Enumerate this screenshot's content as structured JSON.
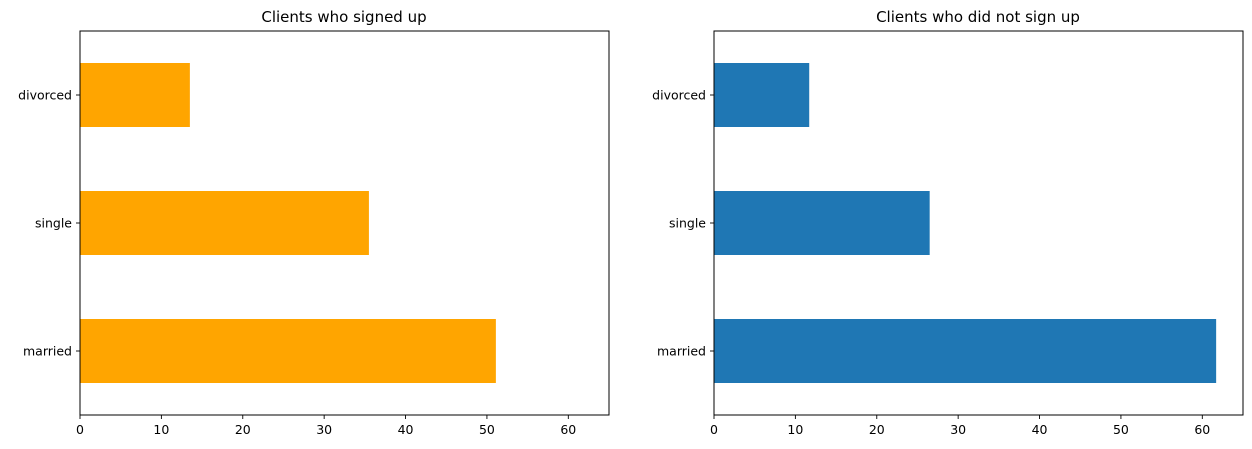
{
  "chart_data": [
    {
      "type": "bar",
      "orientation": "horizontal",
      "title": "Clients who signed up",
      "categories": [
        "married",
        "single",
        "divorced"
      ],
      "values": [
        51.1,
        35.5,
        13.5
      ],
      "xlim": [
        0,
        65
      ],
      "xticks": [
        0,
        10,
        20,
        30,
        40,
        50,
        60
      ],
      "color": "#FFA500",
      "xlabel": "",
      "ylabel": "",
      "grid": false
    },
    {
      "type": "bar",
      "orientation": "horizontal",
      "title": "Clients who did not sign up",
      "categories": [
        "married",
        "single",
        "divorced"
      ],
      "values": [
        61.7,
        26.5,
        11.7
      ],
      "xlim": [
        0,
        65
      ],
      "xticks": [
        0,
        10,
        20,
        30,
        40,
        50,
        60
      ],
      "color": "#1F77B4",
      "xlabel": "",
      "ylabel": "",
      "grid": false
    }
  ]
}
